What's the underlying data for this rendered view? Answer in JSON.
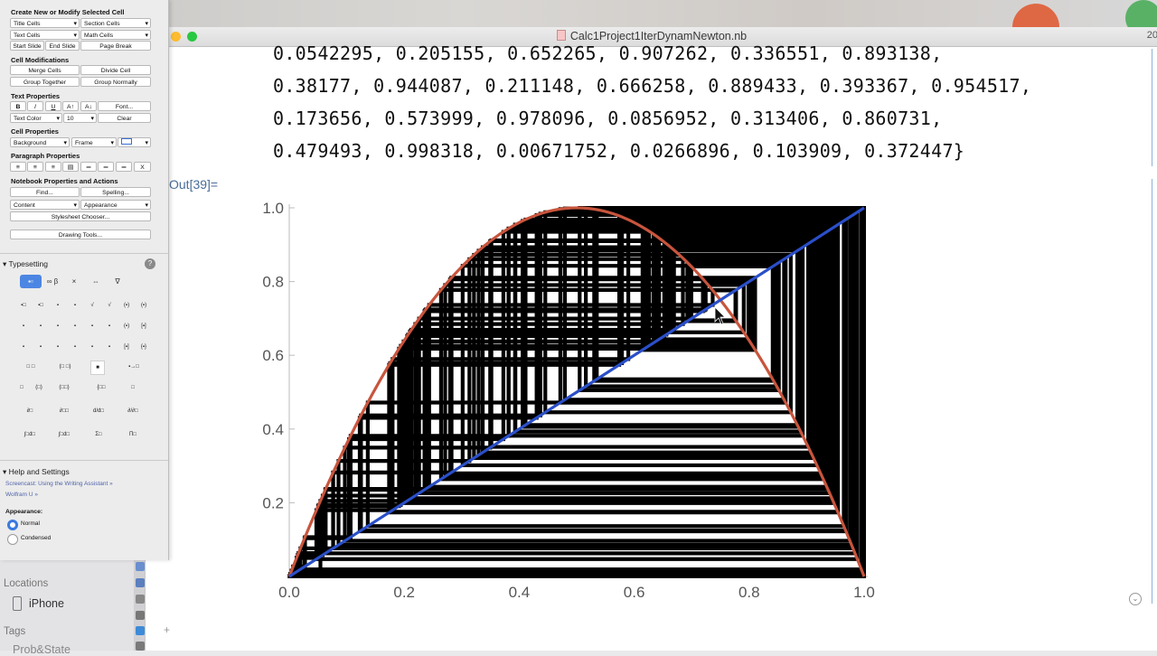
{
  "window": {
    "title": "Calc1Project1IterDynamNewton.nb",
    "right_fragment": "20"
  },
  "output": {
    "lines": [
      "0.0542295, 0.205155, 0.652265, 0.907262, 0.336551, 0.893138,",
      "0.38177, 0.944087, 0.211148, 0.666258, 0.889433, 0.393367, 0.954517,",
      "0.173656, 0.573999, 0.978096, 0.0856952, 0.313406, 0.860731,",
      "0.479493, 0.998318, 0.00671752, 0.0266896, 0.103909, 0.372447}"
    ],
    "out_label": "Out[39]="
  },
  "chart_data": {
    "type": "line",
    "title": "",
    "xlabel": "",
    "ylabel": "",
    "xlim": [
      0,
      1
    ],
    "ylim": [
      0,
      1
    ],
    "x_ticks": [
      "0.0",
      "0.2",
      "0.4",
      "0.6",
      "0.8",
      "1.0"
    ],
    "y_ticks": [
      "0.2",
      "0.4",
      "0.6",
      "0.8",
      "1.0"
    ],
    "series": [
      {
        "kind": "curve",
        "function": "4x(1-x)",
        "color": "#c8553d"
      },
      {
        "kind": "diagonal",
        "function": "y=x",
        "color": "#2a4fc9"
      },
      {
        "kind": "cobweb",
        "color": "#000000",
        "orbit": [
          0.0542295,
          0.205155,
          0.652265,
          0.907262,
          0.336551,
          0.893138,
          0.38177,
          0.944087,
          0.211148,
          0.666258,
          0.889433,
          0.393367,
          0.954517,
          0.173656,
          0.573999,
          0.978096,
          0.0856952,
          0.313406,
          0.860731,
          0.479493,
          0.998318,
          0.00671752,
          0.0266896,
          0.103909,
          0.372447
        ]
      }
    ]
  },
  "palette": {
    "create_title": "Create New or Modify Selected Cell",
    "dd_title_cells": "Title Cells",
    "dd_section_cells": "Section Cells",
    "dd_text_cells": "Text Cells",
    "dd_math_cells": "Math Cells",
    "btn_start_slide": "Start Slide",
    "btn_end_slide": "End Slide",
    "btn_page_break": "Page Break",
    "cell_mod_title": "Cell Modifications",
    "btn_merge": "Merge Cells",
    "btn_divide": "Divide Cell",
    "btn_group_together": "Group Together",
    "btn_group_normally": "Group Normally",
    "text_props_title": "Text Properties",
    "btn_bold": "B",
    "btn_italic": "I",
    "btn_underline": "U",
    "btn_size_up": "A↑",
    "btn_size_down": "A↓",
    "btn_font": "Font...",
    "dd_text_color": "Text Color",
    "dd_size": "10",
    "btn_clear": "Clear",
    "cell_props_title": "Cell Properties",
    "dd_background": "Background",
    "dd_frame": "Frame",
    "para_props_title": "Paragraph Properties",
    "btn_para_x": "X",
    "nb_props_title": "Notebook Properties and Actions",
    "btn_find": "Find...",
    "btn_spelling": "Spelling...",
    "dd_content": "Content",
    "dd_appearance": "Appearance",
    "btn_stylesheet": "Stylesheet Chooser...",
    "btn_drawing": "Drawing Tools...",
    "typesetting": "Typesetting",
    "tab_2": "∞ β",
    "tab_3": "×",
    "tab_4": "⇔",
    "tab_5": "∇",
    "help_title": "Help and Settings",
    "link_screencast": "Screencast: Using the Writing Assistant »",
    "link_wolfram_u": "Wolfram U »",
    "appearance_label": "Appearance:",
    "radio_normal": "Normal",
    "radio_condensed": "Condensed"
  },
  "finder": {
    "locations": "Locations",
    "iphone": "iPhone",
    "tags": "Tags",
    "tag_item": "Prob&State"
  }
}
